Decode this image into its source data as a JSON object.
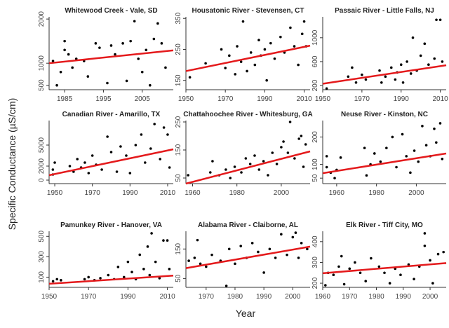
{
  "chart_data": {
    "type": "scatter",
    "ylabel": "Specific Conductance (µS/cm)",
    "xlabel": "Year",
    "colors": {
      "points": "#000000",
      "trend": "#e41a1c"
    },
    "panels": [
      {
        "title": "Whitewood Creek - Vale, SD",
        "xlim": [
          1981,
          2013
        ],
        "xticks": [
          1985,
          1995,
          2005
        ],
        "ylim": [
          400,
          2050
        ],
        "yticks": [
          500,
          1000,
          2000
        ],
        "trend": [
          [
            1981,
            1000
          ],
          [
            2013,
            1290
          ]
        ],
        "points": [
          [
            1982,
            1050
          ],
          [
            1983,
            500
          ],
          [
            1984,
            800
          ],
          [
            1985,
            1500
          ],
          [
            1985,
            1300
          ],
          [
            1986,
            1200
          ],
          [
            1987,
            900
          ],
          [
            1988,
            1100
          ],
          [
            1990,
            1050
          ],
          [
            1991,
            700
          ],
          [
            1993,
            1450
          ],
          [
            1994,
            1350
          ],
          [
            1996,
            550
          ],
          [
            1997,
            1400
          ],
          [
            1998,
            1200
          ],
          [
            2000,
            1450
          ],
          [
            2001,
            600
          ],
          [
            2002,
            1500
          ],
          [
            2003,
            1950
          ],
          [
            2004,
            1100
          ],
          [
            2005,
            800
          ],
          [
            2006,
            1300
          ],
          [
            2007,
            500
          ],
          [
            2008,
            1550
          ],
          [
            2009,
            1900
          ],
          [
            2010,
            1450
          ],
          [
            2011,
            900
          ]
        ]
      },
      {
        "title": "Housatonic River - Stevensen, CT",
        "xlim": [
          1950,
          2013
        ],
        "xticks": [
          1950,
          1970,
          1990,
          2010
        ],
        "ylim": [
          120,
          355
        ],
        "yticks": [
          150,
          250,
          350
        ],
        "trend": [
          [
            1950,
            180
          ],
          [
            2013,
            262
          ]
        ],
        "points": [
          [
            1952,
            160
          ],
          [
            1960,
            205
          ],
          [
            1968,
            250
          ],
          [
            1970,
            190
          ],
          [
            1972,
            230
          ],
          [
            1975,
            170
          ],
          [
            1976,
            260
          ],
          [
            1978,
            210
          ],
          [
            1979,
            340
          ],
          [
            1981,
            180
          ],
          [
            1983,
            240
          ],
          [
            1985,
            200
          ],
          [
            1987,
            280
          ],
          [
            1988,
            230
          ],
          [
            1990,
            250
          ],
          [
            1991,
            150
          ],
          [
            1993,
            270
          ],
          [
            1995,
            220
          ],
          [
            1998,
            290
          ],
          [
            2000,
            240
          ],
          [
            2003,
            320
          ],
          [
            2005,
            260
          ],
          [
            2007,
            200
          ],
          [
            2009,
            300
          ],
          [
            2010,
            340
          ],
          [
            2011,
            260
          ]
        ]
      },
      {
        "title": "Passaic River - Little Falls, NJ",
        "xlim": [
          1950,
          2013
        ],
        "xticks": [
          1950,
          1970,
          1990,
          2010
        ],
        "ylim": [
          130,
          1350
        ],
        "yticks": [
          200,
          600,
          1000
        ],
        "trend": [
          [
            1950,
            230
          ],
          [
            2013,
            540
          ]
        ],
        "points": [
          [
            1952,
            150
          ],
          [
            1963,
            350
          ],
          [
            1965,
            500
          ],
          [
            1967,
            250
          ],
          [
            1970,
            380
          ],
          [
            1972,
            300
          ],
          [
            1979,
            450
          ],
          [
            1980,
            250
          ],
          [
            1982,
            350
          ],
          [
            1985,
            500
          ],
          [
            1987,
            300
          ],
          [
            1988,
            420
          ],
          [
            1990,
            550
          ],
          [
            1991,
            250
          ],
          [
            1993,
            600
          ],
          [
            1995,
            400
          ],
          [
            1996,
            1000
          ],
          [
            1998,
            450
          ],
          [
            2000,
            700
          ],
          [
            2002,
            900
          ],
          [
            2004,
            550
          ],
          [
            2007,
            650
          ],
          [
            2008,
            1300
          ],
          [
            2010,
            1300
          ],
          [
            2011,
            600
          ]
        ]
      },
      {
        "title": "Canadian River - Amarillo, TX",
        "xlim": [
          1947,
          2013
        ],
        "xticks": [
          1950,
          1970,
          1990,
          2010
        ],
        "ylim": [
          -500,
          8500
        ],
        "yticks": [
          0,
          2000,
          5000
        ],
        "trend": [
          [
            1947,
            700
          ],
          [
            2013,
            4400
          ]
        ],
        "points": [
          [
            1949,
            1500
          ],
          [
            1950,
            2500
          ],
          [
            1949,
            800
          ],
          [
            1958,
            2000
          ],
          [
            1960,
            1200
          ],
          [
            1962,
            3000
          ],
          [
            1964,
            1800
          ],
          [
            1966,
            2500
          ],
          [
            1968,
            1000
          ],
          [
            1970,
            3500
          ],
          [
            1972,
            2200
          ],
          [
            1975,
            1500
          ],
          [
            1978,
            6200
          ],
          [
            1980,
            4000
          ],
          [
            1983,
            1200
          ],
          [
            1985,
            4800
          ],
          [
            1988,
            3500
          ],
          [
            1990,
            1000
          ],
          [
            1993,
            5000
          ],
          [
            1996,
            6500
          ],
          [
            1998,
            2500
          ],
          [
            2001,
            4500
          ],
          [
            2003,
            8000
          ],
          [
            2006,
            3000
          ],
          [
            2008,
            7500
          ],
          [
            2010,
            6500
          ],
          [
            2011,
            1800
          ]
        ]
      },
      {
        "title": "Chattahoochee River - Whitesburg, GA",
        "xlim": [
          1957,
          2013
        ],
        "xticks": [
          1960,
          1980,
          2000
        ],
        "ylim": [
          30,
          255
        ],
        "yticks": [
          50,
          150,
          250
        ],
        "trend": [
          [
            1957,
            30
          ],
          [
            2013,
            145
          ]
        ],
        "points": [
          [
            1958,
            60
          ],
          [
            1968,
            70
          ],
          [
            1969,
            110
          ],
          [
            1972,
            60
          ],
          [
            1975,
            80
          ],
          [
            1977,
            50
          ],
          [
            1979,
            90
          ],
          [
            1982,
            70
          ],
          [
            1984,
            120
          ],
          [
            1986,
            100
          ],
          [
            1988,
            130
          ],
          [
            1990,
            80
          ],
          [
            1992,
            110
          ],
          [
            1994,
            60
          ],
          [
            1996,
            140
          ],
          [
            1998,
            100
          ],
          [
            2000,
            160
          ],
          [
            2001,
            180
          ],
          [
            2003,
            140
          ],
          [
            2004,
            250
          ],
          [
            2006,
            120
          ],
          [
            2008,
            190
          ],
          [
            2009,
            200
          ],
          [
            2010,
            90
          ],
          [
            2011,
            170
          ]
        ]
      },
      {
        "title": "Neuse River - Kinston, NC",
        "xlim": [
          1953,
          2015
        ],
        "xticks": [
          1960,
          1980,
          2000
        ],
        "ylim": [
          30,
          260
        ],
        "yticks": [
          50,
          100,
          200
        ],
        "trend": [
          [
            1953,
            68
          ],
          [
            2015,
            140
          ]
        ],
        "points": [
          [
            1955,
            90
          ],
          [
            1955,
            130
          ],
          [
            1957,
            70
          ],
          [
            1959,
            50
          ],
          [
            1960,
            80
          ],
          [
            1962,
            125
          ],
          [
            1974,
            160
          ],
          [
            1975,
            60
          ],
          [
            1977,
            100
          ],
          [
            1979,
            140
          ],
          [
            1982,
            110
          ],
          [
            1985,
            160
          ],
          [
            1988,
            200
          ],
          [
            1990,
            90
          ],
          [
            1993,
            210
          ],
          [
            1995,
            130
          ],
          [
            1997,
            70
          ],
          [
            1999,
            150
          ],
          [
            2001,
            110
          ],
          [
            2003,
            240
          ],
          [
            2005,
            170
          ],
          [
            2007,
            130
          ],
          [
            2009,
            230
          ],
          [
            2010,
            180
          ],
          [
            2012,
            250
          ],
          [
            2013,
            120
          ]
        ]
      },
      {
        "title": "Pamunkey River - Hanover, VA",
        "xlim": [
          1950,
          2013
        ],
        "xticks": [
          1950,
          1970,
          1990,
          2010
        ],
        "ylim": [
          0,
          550
        ],
        "yticks": [
          100,
          300,
          500
        ],
        "trend": [
          [
            1950,
            35
          ],
          [
            2013,
            115
          ]
        ],
        "points": [
          [
            1952,
            60
          ],
          [
            1954,
            80
          ],
          [
            1956,
            70
          ],
          [
            1968,
            80
          ],
          [
            1970,
            100
          ],
          [
            1973,
            70
          ],
          [
            1976,
            90
          ],
          [
            1980,
            120
          ],
          [
            1983,
            80
          ],
          [
            1985,
            200
          ],
          [
            1988,
            100
          ],
          [
            1990,
            250
          ],
          [
            1992,
            150
          ],
          [
            1994,
            80
          ],
          [
            1996,
            320
          ],
          [
            1998,
            180
          ],
          [
            2000,
            400
          ],
          [
            2001,
            120
          ],
          [
            2002,
            530
          ],
          [
            2004,
            250
          ],
          [
            2006,
            90
          ],
          [
            2008,
            460
          ],
          [
            2010,
            460
          ],
          [
            2011,
            180
          ]
        ]
      },
      {
        "title": "Alabama River - Claiborne, AL",
        "xlim": [
          1963,
          2006
        ],
        "xticks": [
          1970,
          1980,
          1990,
          2000
        ],
        "ylim": [
          20,
          210
        ],
        "yticks": [
          50,
          150
        ],
        "trend": [
          [
            1963,
            85
          ],
          [
            2006,
            158
          ]
        ],
        "points": [
          [
            1964,
            110
          ],
          [
            1966,
            120
          ],
          [
            1967,
            180
          ],
          [
            1968,
            100
          ],
          [
            1970,
            90
          ],
          [
            1972,
            130
          ],
          [
            1975,
            110
          ],
          [
            1977,
            25
          ],
          [
            1978,
            150
          ],
          [
            1980,
            100
          ],
          [
            1982,
            160
          ],
          [
            1984,
            120
          ],
          [
            1986,
            170
          ],
          [
            1988,
            140
          ],
          [
            1990,
            70
          ],
          [
            1992,
            150
          ],
          [
            1994,
            120
          ],
          [
            1996,
            200
          ],
          [
            1998,
            130
          ],
          [
            2000,
            190
          ],
          [
            2001,
            205
          ],
          [
            2002,
            120
          ],
          [
            2003,
            170
          ],
          [
            2005,
            150
          ]
        ]
      },
      {
        "title": "Elk River - Tiff City, MO",
        "xlim": [
          1960,
          2006
        ],
        "xticks": [
          1960,
          1970,
          1980,
          1990,
          2000
        ],
        "ylim": [
          180,
          450
        ],
        "yticks": [
          200,
          300,
          400
        ],
        "trend": [
          [
            1960,
            248
          ],
          [
            2006,
            297
          ]
        ],
        "points": [
          [
            1961,
            190
          ],
          [
            1962,
            250
          ],
          [
            1964,
            240
          ],
          [
            1966,
            280
          ],
          [
            1967,
            330
          ],
          [
            1968,
            195
          ],
          [
            1970,
            270
          ],
          [
            1972,
            300
          ],
          [
            1974,
            250
          ],
          [
            1976,
            210
          ],
          [
            1978,
            320
          ],
          [
            1981,
            280
          ],
          [
            1983,
            250
          ],
          [
            1985,
            200
          ],
          [
            1987,
            270
          ],
          [
            1989,
            240
          ],
          [
            1992,
            290
          ],
          [
            1994,
            220
          ],
          [
            1996,
            280
          ],
          [
            1998,
            440
          ],
          [
            1998,
            380
          ],
          [
            2000,
            310
          ],
          [
            2001,
            200
          ],
          [
            2003,
            340
          ],
          [
            2005,
            350
          ]
        ]
      }
    ]
  }
}
